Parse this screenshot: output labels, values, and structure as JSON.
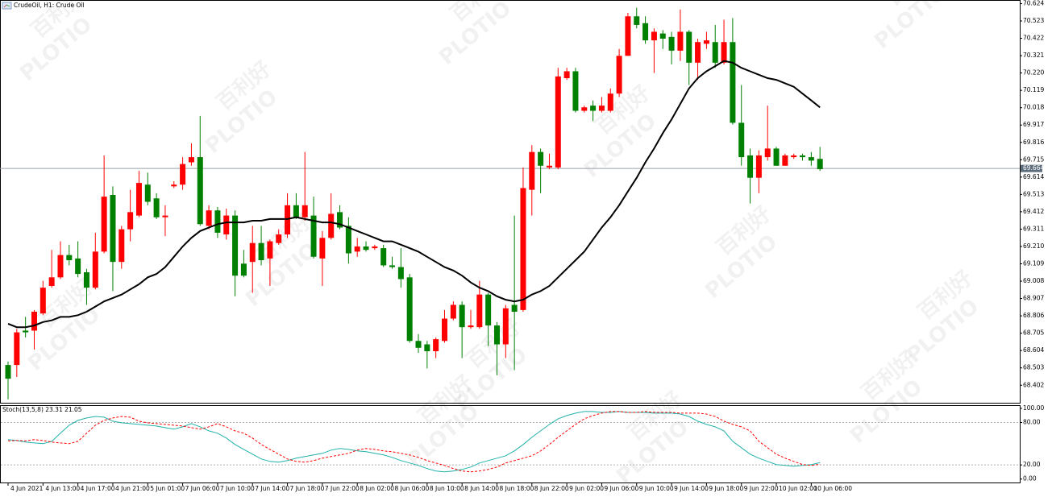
{
  "chart_data": [
    {
      "type": "candlestick",
      "title": "CrudeOil, H1:  Crude Oil",
      "up_color": "#ff0000",
      "down_color": "#008000",
      "ylim": [
        68.3,
        70.645
      ],
      "yticks": [
        70.624,
        70.523,
        70.422,
        70.321,
        {
          "value": 70.22,
          "label": "70.220"
        },
        70.119,
        70.018,
        69.917,
        69.816,
        69.715,
        69.614,
        69.513,
        69.412,
        69.311,
        {
          "value": 69.21,
          "label": "69.210"
        },
        69.109,
        69.008,
        68.907,
        68.806,
        68.705,
        68.604,
        68.503,
        68.402
      ],
      "grid": false,
      "last_price": 69.664,
      "watermark": [
        "PLOTIO",
        "百利好"
      ],
      "categories": [
        "4 Jun 2021",
        null,
        null,
        null,
        "4 Jun 13:00",
        null,
        null,
        null,
        "4 Jun 17:00",
        null,
        null,
        null,
        "4 Jun 21:00",
        null,
        null,
        null,
        "5 Jun 01:00",
        null,
        null,
        null,
        "7 Jun 06:00",
        null,
        null,
        null,
        "7 Jun 10:00",
        null,
        null,
        null,
        "7 Jun 14:00",
        null,
        null,
        null,
        "7 Jun 18:00",
        null,
        null,
        null,
        "7 Jun 22:00",
        null,
        null,
        null,
        "8 Jun 02:00",
        null,
        null,
        null,
        "8 Jun 06:00",
        null,
        null,
        null,
        "8 Jun 10:00",
        null,
        null,
        null,
        "8 Jun 14:00",
        null,
        null,
        null,
        "8 Jun 18:00",
        null,
        null,
        null,
        "8 Jun 22:00",
        null,
        null,
        null,
        "9 Jun 02:00",
        null,
        null,
        null,
        "9 Jun 06:00",
        null,
        null,
        null,
        "9 Jun 10:00",
        null,
        null,
        null,
        "9 Jun 14:00",
        null,
        null,
        null,
        "9 Jun 18:00",
        null,
        null,
        null,
        "9 Jun 22:00",
        null,
        null,
        null,
        "10 Jun 02:00",
        null,
        null,
        null,
        "10 Jun 06:00",
        null
      ],
      "open": [
        68.52,
        68.52,
        68.72,
        68.72,
        68.82,
        68.98,
        69.03,
        69.16,
        69.14,
        69.06,
        68.97,
        69.18,
        69.51,
        69.12,
        69.31,
        69.39,
        69.57,
        69.49,
        69.38,
        69.56,
        69.57,
        69.7,
        69.73,
        69.33,
        69.42,
        69.28,
        69.39,
        69.11,
        69.12,
        69.23,
        69.14,
        69.23,
        69.28,
        69.45,
        69.38,
        69.39,
        69.14,
        69.26,
        69.41,
        69.33,
        69.18,
        69.21,
        69.2,
        69.2,
        69.1,
        69.09,
        69.03,
        68.66,
        68.64,
        68.6,
        68.66,
        68.79,
        68.87,
        68.74,
        68.74,
        68.93,
        68.75,
        68.64,
        68.87,
        68.84,
        69.54,
        69.76,
        69.67,
        69.67,
        70.19,
        70.23,
        70.0,
        70.03,
        70.0,
        70.0,
        70.1,
        70.32,
        70.55,
        70.51,
        70.41,
        70.45,
        70.43,
        70.35,
        70.46,
        70.28,
        70.39,
        70.4,
        70.28,
        70.4,
        69.93,
        69.74,
        69.61,
        69.73,
        69.78,
        69.68,
        69.73,
        69.74,
        69.73,
        69.72
      ],
      "high": [
        68.54,
        68.73,
        68.8,
        68.84,
        69.01,
        69.19,
        69.24,
        69.22,
        69.24,
        69.08,
        69.29,
        69.74,
        69.56,
        69.33,
        69.54,
        69.65,
        69.64,
        69.52,
        69.45,
        69.59,
        69.73,
        69.81,
        69.97,
        69.45,
        69.44,
        69.43,
        69.42,
        69.19,
        69.33,
        69.33,
        69.25,
        69.31,
        69.52,
        69.52,
        69.76,
        69.5,
        69.3,
        69.52,
        69.45,
        69.38,
        69.26,
        69.24,
        69.22,
        69.22,
        69.15,
        69.2,
        69.05,
        68.7,
        68.66,
        68.68,
        68.84,
        68.89,
        68.89,
        68.84,
        69.01,
        68.94,
        68.77,
        68.87,
        69.39,
        69.67,
        69.8,
        69.78,
        69.75,
        70.25,
        70.25,
        70.25,
        70.03,
        70.06,
        70.08,
        70.13,
        70.36,
        70.57,
        70.6,
        70.55,
        70.48,
        70.47,
        70.46,
        70.59,
        70.47,
        70.42,
        70.46,
        70.5,
        70.53,
        70.54,
        70.15,
        69.78,
        69.77,
        70.03,
        69.79,
        69.75,
        69.75,
        69.75,
        69.76,
        69.79
      ],
      "low": [
        68.32,
        68.45,
        68.68,
        68.61,
        68.81,
        68.97,
        69.02,
        69.1,
        69.03,
        68.87,
        68.96,
        69.17,
        68.95,
        69.08,
        69.24,
        69.38,
        69.45,
        69.37,
        69.27,
        69.55,
        69.54,
        69.68,
        69.33,
        69.31,
        69.26,
        69.25,
        68.92,
        69.03,
        68.94,
        69.1,
        68.98,
        69.22,
        69.26,
        69.37,
        69.36,
        69.14,
        68.98,
        69.25,
        69.31,
        69.11,
        69.15,
        69.18,
        69.19,
        69.09,
        69.08,
        68.97,
        68.65,
        68.59,
        68.5,
        68.56,
        68.65,
        68.78,
        68.56,
        68.73,
        68.73,
        68.63,
        68.46,
        68.56,
        68.49,
        68.83,
        69.39,
        69.52,
        69.66,
        69.66,
        70.18,
        69.99,
        69.99,
        69.94,
        69.99,
        69.99,
        70.08,
        70.32,
        70.48,
        70.39,
        70.22,
        70.36,
        70.27,
        70.29,
        70.15,
        70.18,
        70.36,
        70.25,
        70.27,
        69.92,
        69.68,
        69.46,
        69.52,
        69.71,
        69.68,
        69.68,
        69.72,
        69.71,
        69.68,
        69.65
      ],
      "close": [
        68.44,
        68.71,
        68.71,
        68.83,
        68.97,
        69.03,
        69.16,
        69.13,
        69.05,
        68.97,
        69.18,
        69.5,
        69.12,
        69.31,
        69.41,
        69.58,
        69.47,
        69.38,
        69.39,
        69.57,
        69.69,
        69.73,
        69.34,
        69.42,
        69.29,
        69.39,
        69.04,
        69.04,
        69.23,
        69.13,
        69.24,
        69.28,
        69.45,
        69.38,
        69.45,
        69.15,
        69.26,
        69.4,
        69.32,
        69.17,
        69.21,
        69.19,
        69.21,
        69.1,
        69.09,
        69.02,
        68.66,
        68.62,
        68.6,
        68.67,
        68.79,
        68.87,
        68.74,
        68.75,
        68.93,
        68.75,
        68.64,
        68.85,
        68.83,
        69.55,
        69.76,
        69.68,
        69.68,
        70.2,
        70.23,
        70.0,
        70.02,
        70.0,
        70.03,
        70.1,
        70.32,
        70.55,
        70.5,
        70.41,
        70.46,
        70.42,
        70.35,
        70.46,
        70.28,
        70.4,
        70.41,
        70.28,
        70.4,
        69.93,
        69.73,
        69.61,
        69.74,
        69.78,
        69.68,
        69.74,
        69.74,
        69.73,
        69.71,
        69.66
      ],
      "overlay": {
        "color": "#000000",
        "values": [
          68.76,
          68.74,
          68.74,
          68.75,
          68.77,
          68.78,
          68.8,
          68.8,
          68.81,
          68.83,
          68.86,
          68.89,
          68.91,
          68.93,
          68.96,
          68.99,
          69.03,
          69.05,
          69.09,
          69.15,
          69.21,
          69.26,
          69.3,
          69.32,
          69.34,
          69.35,
          69.35,
          69.35,
          69.36,
          69.36,
          69.37,
          69.37,
          69.37,
          69.38,
          69.37,
          69.36,
          69.35,
          69.35,
          69.34,
          69.32,
          69.3,
          69.28,
          69.26,
          69.24,
          69.24,
          69.22,
          69.2,
          69.18,
          69.15,
          69.12,
          69.09,
          69.07,
          69.04,
          69.0,
          68.97,
          68.95,
          68.92,
          68.9,
          68.89,
          68.9,
          68.93,
          68.95,
          68.98,
          69.03,
          69.08,
          69.13,
          69.18,
          69.25,
          69.32,
          69.38,
          69.45,
          69.53,
          69.61,
          69.7,
          69.78,
          69.87,
          69.95,
          70.04,
          70.13,
          70.19,
          70.23,
          70.26,
          70.29,
          70.28,
          70.25,
          70.23,
          70.21,
          70.19,
          70.18,
          70.16,
          70.14,
          70.1,
          70.06,
          70.02
        ]
      }
    },
    {
      "type": "line",
      "title": "Stoch(13,5,8) 23.31 21.05",
      "ylim": [
        -6,
        104.5
      ],
      "yticks": [
        {
          "value": 100,
          "label": "100.00"
        },
        {
          "value": 80,
          "label": "80.00"
        },
        {
          "value": 20,
          "label": "20.00"
        },
        {
          "value": 0,
          "label": "0.00"
        }
      ],
      "levels": [
        80,
        20
      ],
      "series": [
        {
          "color": "#20b2aa",
          "values": [
            55.7,
            54.5,
            52.3,
            51.1,
            50.0,
            53.4,
            64.8,
            76.1,
            83.0,
            86.4,
            88.6,
            87.5,
            81.8,
            79.5,
            78.4,
            77.3,
            76.1,
            75.0,
            72.7,
            70.5,
            73.9,
            78.4,
            73.9,
            68.2,
            64.8,
            58.0,
            48.9,
            42.0,
            35.2,
            28.4,
            25.0,
            23.9,
            26.1,
            29.5,
            31.8,
            34.1,
            36.4,
            40.9,
            43.2,
            42.0,
            39.8,
            38.6,
            36.4,
            34.1,
            30.7,
            26.1,
            22.7,
            19.3,
            14.8,
            11.4,
            10.2,
            11.4,
            13.6,
            17.0,
            22.7,
            26.1,
            29.5,
            33.0,
            39.8,
            48.9,
            59.1,
            68.2,
            77.3,
            85.2,
            89.8,
            93.2,
            95.5,
            95.5,
            94.3,
            94.3,
            95.5,
            94.3,
            94.3,
            94.3,
            93.2,
            93.2,
            93.2,
            92.0,
            88.6,
            81.8,
            77.3,
            73.9,
            68.2,
            53.4,
            44.3,
            35.2,
            29.5,
            25.0,
            20.5,
            19.3,
            18.2,
            19.3,
            20.5,
            23.31
          ]
        },
        {
          "color": "#ff0000",
          "dashed": true,
          "values": [
            54.0,
            54.5,
            54.0,
            55.7,
            54.5,
            52.3,
            51.1,
            50.0,
            53.4,
            64.8,
            76.1,
            83.0,
            86.4,
            88.6,
            87.5,
            81.8,
            79.5,
            78.4,
            77.3,
            76.1,
            75.0,
            72.7,
            70.5,
            73.9,
            78.4,
            73.9,
            68.2,
            64.8,
            58.0,
            48.9,
            42.0,
            35.2,
            28.4,
            25.0,
            23.9,
            26.1,
            29.5,
            31.8,
            34.1,
            36.4,
            40.9,
            43.2,
            42.0,
            39.8,
            38.6,
            36.4,
            34.1,
            30.7,
            26.1,
            22.7,
            19.3,
            14.8,
            11.4,
            10.2,
            11.4,
            13.6,
            17.0,
            22.7,
            26.1,
            29.5,
            33.0,
            39.8,
            48.9,
            59.1,
            68.2,
            77.3,
            85.2,
            89.8,
            93.2,
            95.5,
            95.5,
            94.3,
            94.3,
            95.5,
            94.3,
            94.3,
            94.3,
            93.2,
            93.2,
            93.2,
            92.0,
            88.6,
            81.8,
            77.3,
            73.9,
            68.2,
            53.4,
            44.3,
            35.2,
            29.5,
            25.0,
            20.5,
            19.3,
            21.05
          ]
        }
      ]
    }
  ]
}
